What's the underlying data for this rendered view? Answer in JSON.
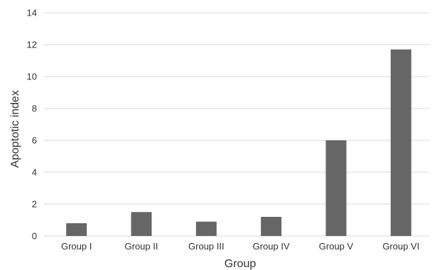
{
  "chart_data": {
    "type": "bar",
    "categories": [
      "Group I",
      "Group II",
      "Group III",
      "Group IV",
      "Group V",
      "Group VI"
    ],
    "series": [
      {
        "values": [
          0.8,
          1.5,
          0.9,
          1.2,
          6.0,
          11.7
        ]
      }
    ],
    "xlabel": "Group",
    "ylabel": "Apoptotic index",
    "ylim": [
      0,
      14
    ],
    "yticks": [
      0,
      2,
      4,
      6,
      8,
      10,
      12,
      14
    ],
    "grid": true,
    "bar_color": "#666666",
    "gridline_color": "#d9d9d9"
  }
}
